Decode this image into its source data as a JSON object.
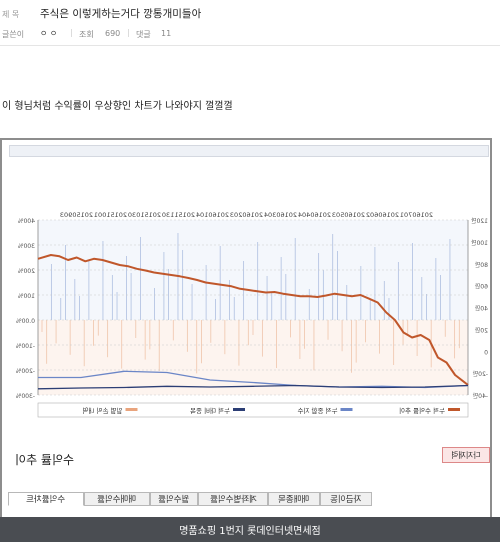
{
  "post": {
    "title_label": "제 목",
    "title": "주식은 이렇게하는거다 깡통개미들아",
    "author_label": "글쓴이",
    "author": "ㅇ ㅇ",
    "views_label": "조회",
    "views": "690",
    "comments_label": "댓글",
    "comments": "11",
    "body": "이 형님처럼 수익률이 우상향인 차트가 나와야지 껄껄껄"
  },
  "window": {
    "section_title": "수익률 추이",
    "button_label": "다지재력",
    "tabs": [
      "수익률차트",
      "매매수익률",
      "월수익률",
      "계좌별수익률",
      "매매종목",
      "자금이동"
    ],
    "footer_text": "명품쇼핑 1번지 롯데인터넷면세점"
  },
  "chart_data": {
    "type": "line",
    "mirrored": true,
    "x_ticks": [
      "20150903",
      "20151001",
      "20151030",
      "20151130",
      "20160104",
      "20160203",
      "20160304",
      "20160404",
      "20160503",
      "20160602",
      "20160701"
    ],
    "left_axis_ticks": [
      "400%",
      "300%",
      "200%",
      "100%",
      "0.00%",
      "-100%",
      "-200%",
      "-300%"
    ],
    "right_axis_ticks": [
      "120만",
      "100만",
      "80만",
      "60만",
      "40만",
      "20만",
      "0",
      "-20만",
      "-40만"
    ],
    "left_ylim": [
      -300,
      400
    ],
    "legend": [
      {
        "name": "누적 수익률 추이",
        "color": "#c0572b"
      },
      {
        "name": "누적 종합 지수",
        "color": "#6b86c7"
      },
      {
        "name": "누적 대비 종목",
        "color": "#2c3e75"
      },
      {
        "name": "일별 손익 내역",
        "color": "#e9a47d"
      }
    ],
    "series": [
      {
        "name": "누적 수익률 추이",
        "color": "#c0572b",
        "x": [
          0,
          0.03,
          0.05,
          0.07,
          0.09,
          0.11,
          0.13,
          0.15,
          0.17,
          0.19,
          0.21,
          0.23,
          0.25,
          0.27,
          0.29,
          0.31,
          0.33,
          0.35,
          0.37,
          0.39,
          0.41,
          0.43,
          0.45,
          0.47,
          0.49,
          0.51,
          0.53,
          0.55,
          0.57,
          0.59,
          0.61,
          0.63,
          0.65,
          0.67,
          0.69,
          0.71,
          0.73,
          0.75,
          0.77,
          0.79,
          0.81,
          0.83,
          0.85,
          0.87,
          0.89,
          0.91,
          0.93,
          0.95,
          0.97,
          1.0
        ],
        "values": [
          245,
          260,
          255,
          240,
          250,
          235,
          245,
          240,
          230,
          220,
          215,
          205,
          198,
          190,
          185,
          180,
          175,
          168,
          160,
          150,
          145,
          140,
          135,
          125,
          120,
          115,
          110,
          112,
          105,
          100,
          95,
          95,
          92,
          98,
          105,
          100,
          95,
          100,
          85,
          70,
          30,
          0,
          -50,
          -70,
          -60,
          -80,
          -150,
          -170,
          -220,
          -260
        ]
      },
      {
        "name": "누적 종합 지수",
        "color": "#6b86c7",
        "x": [
          0,
          0.1,
          0.2,
          0.3,
          0.4,
          0.5,
          0.6,
          0.7,
          0.8,
          0.9,
          1.0
        ],
        "values": [
          -230,
          -230,
          -205,
          -210,
          -240,
          -250,
          -262,
          -268,
          -265,
          -270,
          -262
        ]
      },
      {
        "name": "누적 대비 종목",
        "color": "#2c3e75",
        "x": [
          0,
          0.1,
          0.2,
          0.3,
          0.4,
          0.5,
          0.6,
          0.7,
          0.8,
          0.9,
          1.0
        ],
        "values": [
          -275,
          -272,
          -270,
          -265,
          -268,
          -265,
          -262,
          -268,
          -270,
          -268,
          -262
        ]
      }
    ]
  }
}
